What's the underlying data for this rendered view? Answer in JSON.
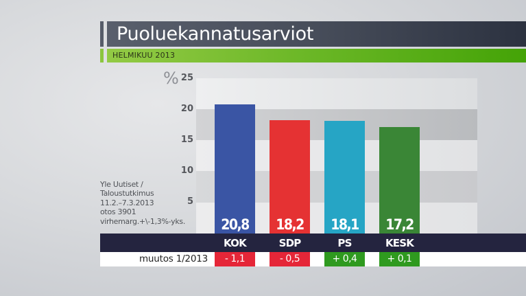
{
  "header": {
    "title": "Puoluekannatusarviot",
    "subtitle": "HELMIKUU 2013"
  },
  "axis": {
    "unit_symbol": "%",
    "ticks": [
      "25",
      "20",
      "15",
      "10",
      "5"
    ]
  },
  "source_note": {
    "lines": [
      "Yle Uutiset /",
      "Taloustutkimus",
      "11.2.–7.3.2013",
      "otos 3901",
      "virhemarg.+\\-1,3%-yks."
    ]
  },
  "parties": [
    {
      "label": "KOK",
      "value": "20,8",
      "change": "- 1,1",
      "color": "#3a55a4",
      "change_color": "#e52638"
    },
    {
      "label": "SDP",
      "value": "18,2",
      "change": "- 0,5",
      "color": "#e53233",
      "change_color": "#e52638"
    },
    {
      "label": "PS",
      "value": "18,1",
      "change": "+ 0,4",
      "color": "#26a5c5",
      "change_color": "#2f9a1f"
    },
    {
      "label": "KESK",
      "value": "17,2",
      "change": "+ 0,1",
      "color": "#3a8636",
      "change_color": "#2f9a1f"
    }
  ],
  "change_row": {
    "label": "muutos 1/2013"
  },
  "chart_data": {
    "type": "bar",
    "title": "Puoluekannatusarviot",
    "subtitle": "HELMIKUU 2013",
    "categories": [
      "KOK",
      "SDP",
      "PS",
      "KESK"
    ],
    "values": [
      20.8,
      18.2,
      18.1,
      17.2
    ],
    "changes_vs_1_2013": [
      -1.1,
      -0.5,
      0.4,
      0.1
    ],
    "change_label": "muutos 1/2013",
    "xlabel": "",
    "ylabel": "%",
    "ylim": [
      0,
      25
    ],
    "yticks": [
      5,
      10,
      15,
      20,
      25
    ],
    "grid": "alternating horizontal bands",
    "colors": [
      "#3a55a4",
      "#e53233",
      "#26a5c5",
      "#3a8636"
    ],
    "annotations": [
      "Yle Uutiset / Taloustutkimus",
      "11.2.–7.3.2013",
      "otos 3901",
      "virhemarg.+\\-1,3%-yks."
    ]
  }
}
